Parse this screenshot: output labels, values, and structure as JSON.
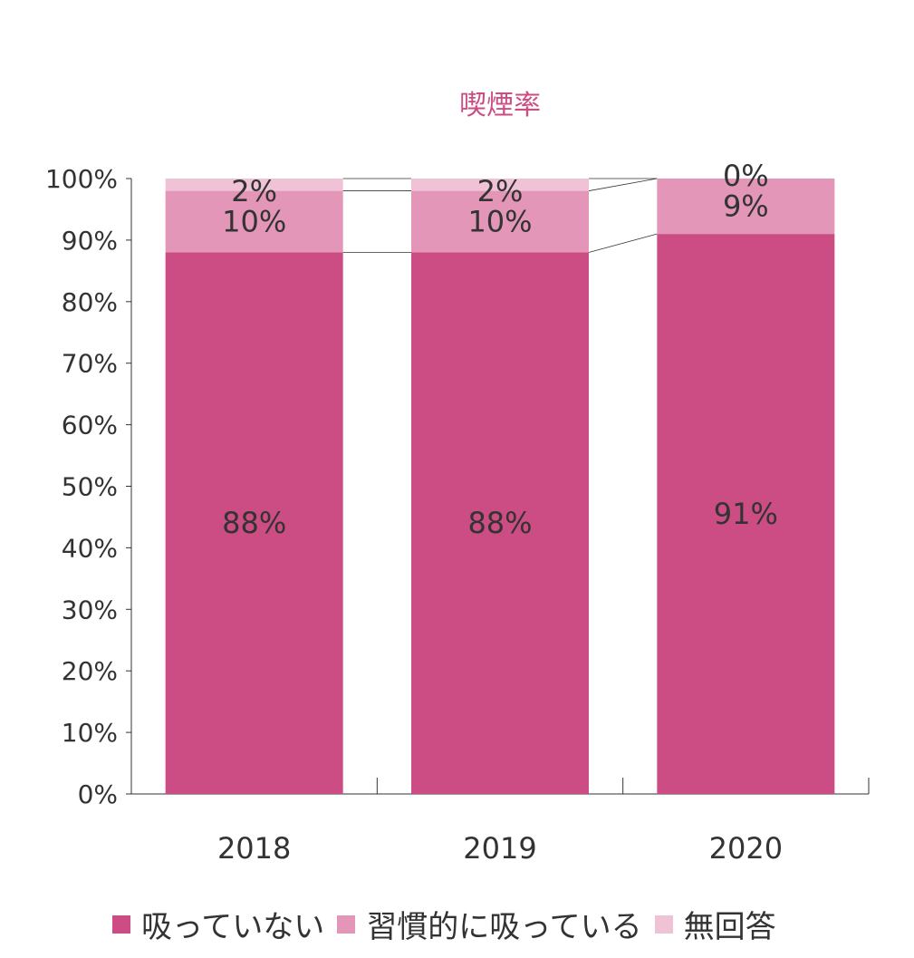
{
  "chart_data": {
    "type": "bar",
    "stacked": true,
    "percent": true,
    "title": "喫煙率",
    "categories": [
      "2018",
      "2019",
      "2020"
    ],
    "series": [
      {
        "name": "吸っていない",
        "values": [
          88,
          88,
          91
        ],
        "labels": [
          "88%",
          "88%",
          "91%"
        ],
        "color": "#cc4d83"
      },
      {
        "name": "習慣的に吸っている",
        "values": [
          10,
          10,
          9
        ],
        "labels": [
          "10%",
          "10%",
          "9%"
        ],
        "color": "#e396b7"
      },
      {
        "name": "無回答",
        "values": [
          2,
          2,
          0
        ],
        "labels": [
          "2%",
          "2%",
          "0%"
        ],
        "color": "#f0c2d6"
      }
    ],
    "ylim": [
      0,
      100
    ],
    "yticks": [
      "0%",
      "10%",
      "20%",
      "30%",
      "40%",
      "50%",
      "60%",
      "70%",
      "80%",
      "90%",
      "100%"
    ],
    "grid": false,
    "series_connector_lines": true,
    "legend": "bottom"
  }
}
